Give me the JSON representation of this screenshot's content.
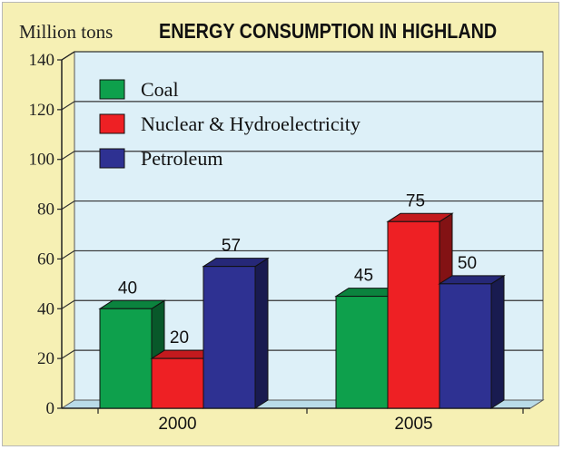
{
  "chart_data": {
    "type": "bar",
    "title": "ENERGY CONSUMPTION IN HIGHLAND",
    "ylabel": "Million tons",
    "xlabel": "",
    "ylim": [
      0,
      140
    ],
    "yticks": [
      0,
      20,
      40,
      60,
      80,
      100,
      120,
      140
    ],
    "categories": [
      "2000",
      "2005"
    ],
    "series": [
      {
        "name": "Coal",
        "values": [
          40,
          45
        ],
        "color": "#0ea04c"
      },
      {
        "name": "Nuclear & Hydroelectricity",
        "values": [
          20,
          75
        ],
        "color": "#ee2024"
      },
      {
        "name": "Petroleum",
        "values": [
          57,
          50
        ],
        "color": "#2e3192"
      }
    ],
    "data_labels": true,
    "grid": "horizontal",
    "legend_position": "top-left",
    "style": "3d-bars",
    "colors": {
      "background": "#f6f0b4",
      "plot_area": "#ddf0f8",
      "floor": "#b9dbe8",
      "grid": "#333333"
    }
  }
}
